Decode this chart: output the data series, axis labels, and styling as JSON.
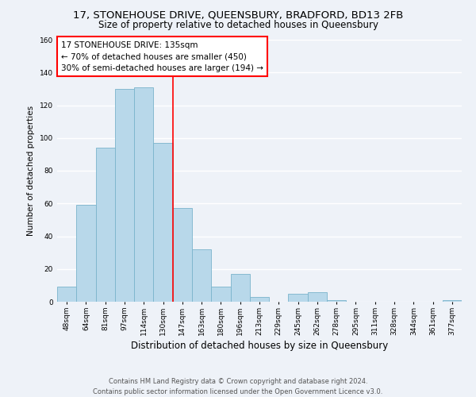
{
  "title": "17, STONEHOUSE DRIVE, QUEENSBURY, BRADFORD, BD13 2FB",
  "subtitle": "Size of property relative to detached houses in Queensbury",
  "xlabel": "Distribution of detached houses by size in Queensbury",
  "ylabel": "Number of detached properties",
  "footer_lines": [
    "Contains HM Land Registry data © Crown copyright and database right 2024.",
    "Contains public sector information licensed under the Open Government Licence v3.0."
  ],
  "bar_labels": [
    "48sqm",
    "64sqm",
    "81sqm",
    "97sqm",
    "114sqm",
    "130sqm",
    "147sqm",
    "163sqm",
    "180sqm",
    "196sqm",
    "213sqm",
    "229sqm",
    "245sqm",
    "262sqm",
    "278sqm",
    "295sqm",
    "311sqm",
    "328sqm",
    "344sqm",
    "361sqm",
    "377sqm"
  ],
  "bar_heights": [
    9,
    59,
    94,
    130,
    131,
    97,
    57,
    32,
    9,
    17,
    3,
    0,
    5,
    6,
    1,
    0,
    0,
    0,
    0,
    0,
    1
  ],
  "bar_color": "#b8d8ea",
  "bar_edge_color": "#7ab4cc",
  "vline_x": 5.5,
  "vline_color": "red",
  "vline_lw": 1.2,
  "annotation_title": "17 STONEHOUSE DRIVE: 135sqm",
  "annotation_line1": "← 70% of detached houses are smaller (450)",
  "annotation_line2": "30% of semi-detached houses are larger (194) →",
  "annotation_box_color": "white",
  "annotation_box_edge": "red",
  "ylim": [
    0,
    160
  ],
  "yticks": [
    0,
    20,
    40,
    60,
    80,
    100,
    120,
    140,
    160
  ],
  "bg_color": "#eef2f8",
  "grid_color": "white",
  "title_fontsize": 9.5,
  "subtitle_fontsize": 8.5,
  "xlabel_fontsize": 8.5,
  "ylabel_fontsize": 7.5,
  "tick_fontsize": 6.5,
  "annotation_fontsize": 7.5,
  "footer_fontsize": 6.0
}
